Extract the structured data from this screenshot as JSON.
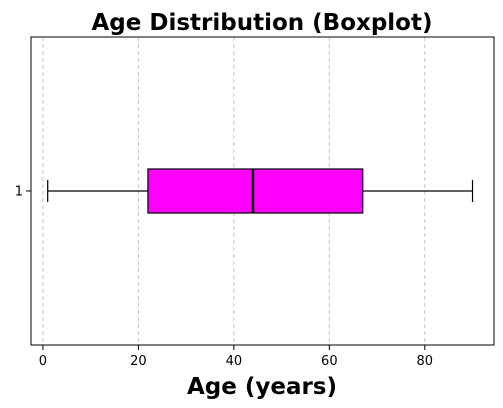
{
  "chart_data": {
    "type": "boxplot",
    "title": "Age Distribution (Boxplot)",
    "xlabel": "Age (years)",
    "ylabel": "",
    "orientation": "horizontal",
    "xlim": [
      -2.5,
      94.5
    ],
    "xticks": [
      0,
      20,
      40,
      60,
      80
    ],
    "xtick_labels": [
      "0",
      "20",
      "40",
      "60",
      "80"
    ],
    "grid": "x-dashed",
    "categories": [
      "1"
    ],
    "series": [
      {
        "whisker_low": 1,
        "q1": 22,
        "median": 44,
        "q3": 67,
        "whisker_high": 90,
        "color": "#ff00ff"
      }
    ]
  }
}
